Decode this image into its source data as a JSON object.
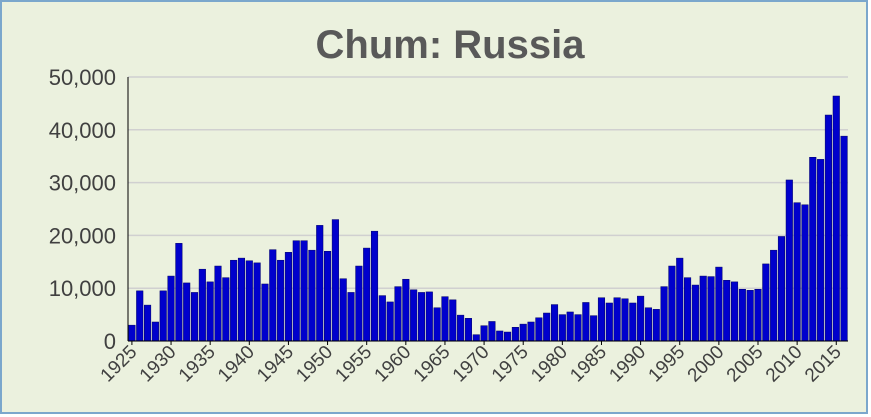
{
  "chart_data": {
    "type": "bar",
    "title": "Chum: Russia",
    "color": "#0000cc",
    "x": [
      1925,
      1926,
      1927,
      1928,
      1929,
      1930,
      1931,
      1932,
      1933,
      1934,
      1935,
      1936,
      1937,
      1938,
      1939,
      1940,
      1941,
      1942,
      1943,
      1944,
      1945,
      1946,
      1947,
      1948,
      1949,
      1950,
      1951,
      1952,
      1953,
      1954,
      1955,
      1956,
      1957,
      1958,
      1959,
      1960,
      1961,
      1962,
      1963,
      1964,
      1965,
      1966,
      1967,
      1968,
      1969,
      1970,
      1971,
      1972,
      1973,
      1974,
      1975,
      1976,
      1977,
      1978,
      1979,
      1980,
      1981,
      1982,
      1983,
      1984,
      1985,
      1986,
      1987,
      1988,
      1989,
      1990,
      1991,
      1992,
      1993,
      1994,
      1995,
      1996,
      1997,
      1998,
      1999,
      2000,
      2001,
      2002,
      2003,
      2004,
      2005,
      2006,
      2007,
      2008,
      2009,
      2010,
      2011,
      2012,
      2013,
      2014,
      2015,
      2016
    ],
    "values": [
      3000,
      9500,
      6800,
      3600,
      9500,
      12300,
      18500,
      11000,
      9200,
      13600,
      11200,
      14200,
      12000,
      15300,
      15700,
      15200,
      14800,
      10800,
      17300,
      15300,
      16800,
      19000,
      19000,
      17200,
      21900,
      17000,
      23000,
      11800,
      9200,
      14200,
      17600,
      20800,
      8600,
      7400,
      10300,
      11700,
      9700,
      9200,
      9300,
      6300,
      8400,
      7800,
      4900,
      4300,
      1200,
      2900,
      3700,
      1900,
      1700,
      2600,
      3200,
      3600,
      4400,
      5300,
      6900,
      5000,
      5500,
      5000,
      7300,
      4800,
      8200,
      7200,
      8200,
      8000,
      7200,
      8500,
      6300,
      6000,
      10300,
      14200,
      15700,
      12000,
      10600,
      12300,
      12200,
      14000,
      11500,
      11200,
      9800,
      9600,
      9800,
      14600,
      17200,
      19800,
      30500,
      26200,
      25800,
      34800,
      34400,
      42800,
      46400,
      38800
    ],
    "xlim": [
      1924.5,
      2016.5
    ],
    "xticks": [
      1925,
      1930,
      1935,
      1940,
      1945,
      1950,
      1955,
      1960,
      1965,
      1970,
      1975,
      1980,
      1985,
      1990,
      1995,
      2000,
      2005,
      2010,
      2015
    ],
    "ylim": [
      0,
      50000
    ],
    "yticks": [
      0,
      {
        "value": 10000,
        "label": "10,000"
      },
      {
        "value": 20000,
        "label": "20,000"
      },
      {
        "value": 30000,
        "label": "30,000"
      },
      {
        "value": 40000,
        "label": "40,000"
      },
      {
        "value": 50000,
        "label": "50,000"
      }
    ],
    "grid": true
  }
}
